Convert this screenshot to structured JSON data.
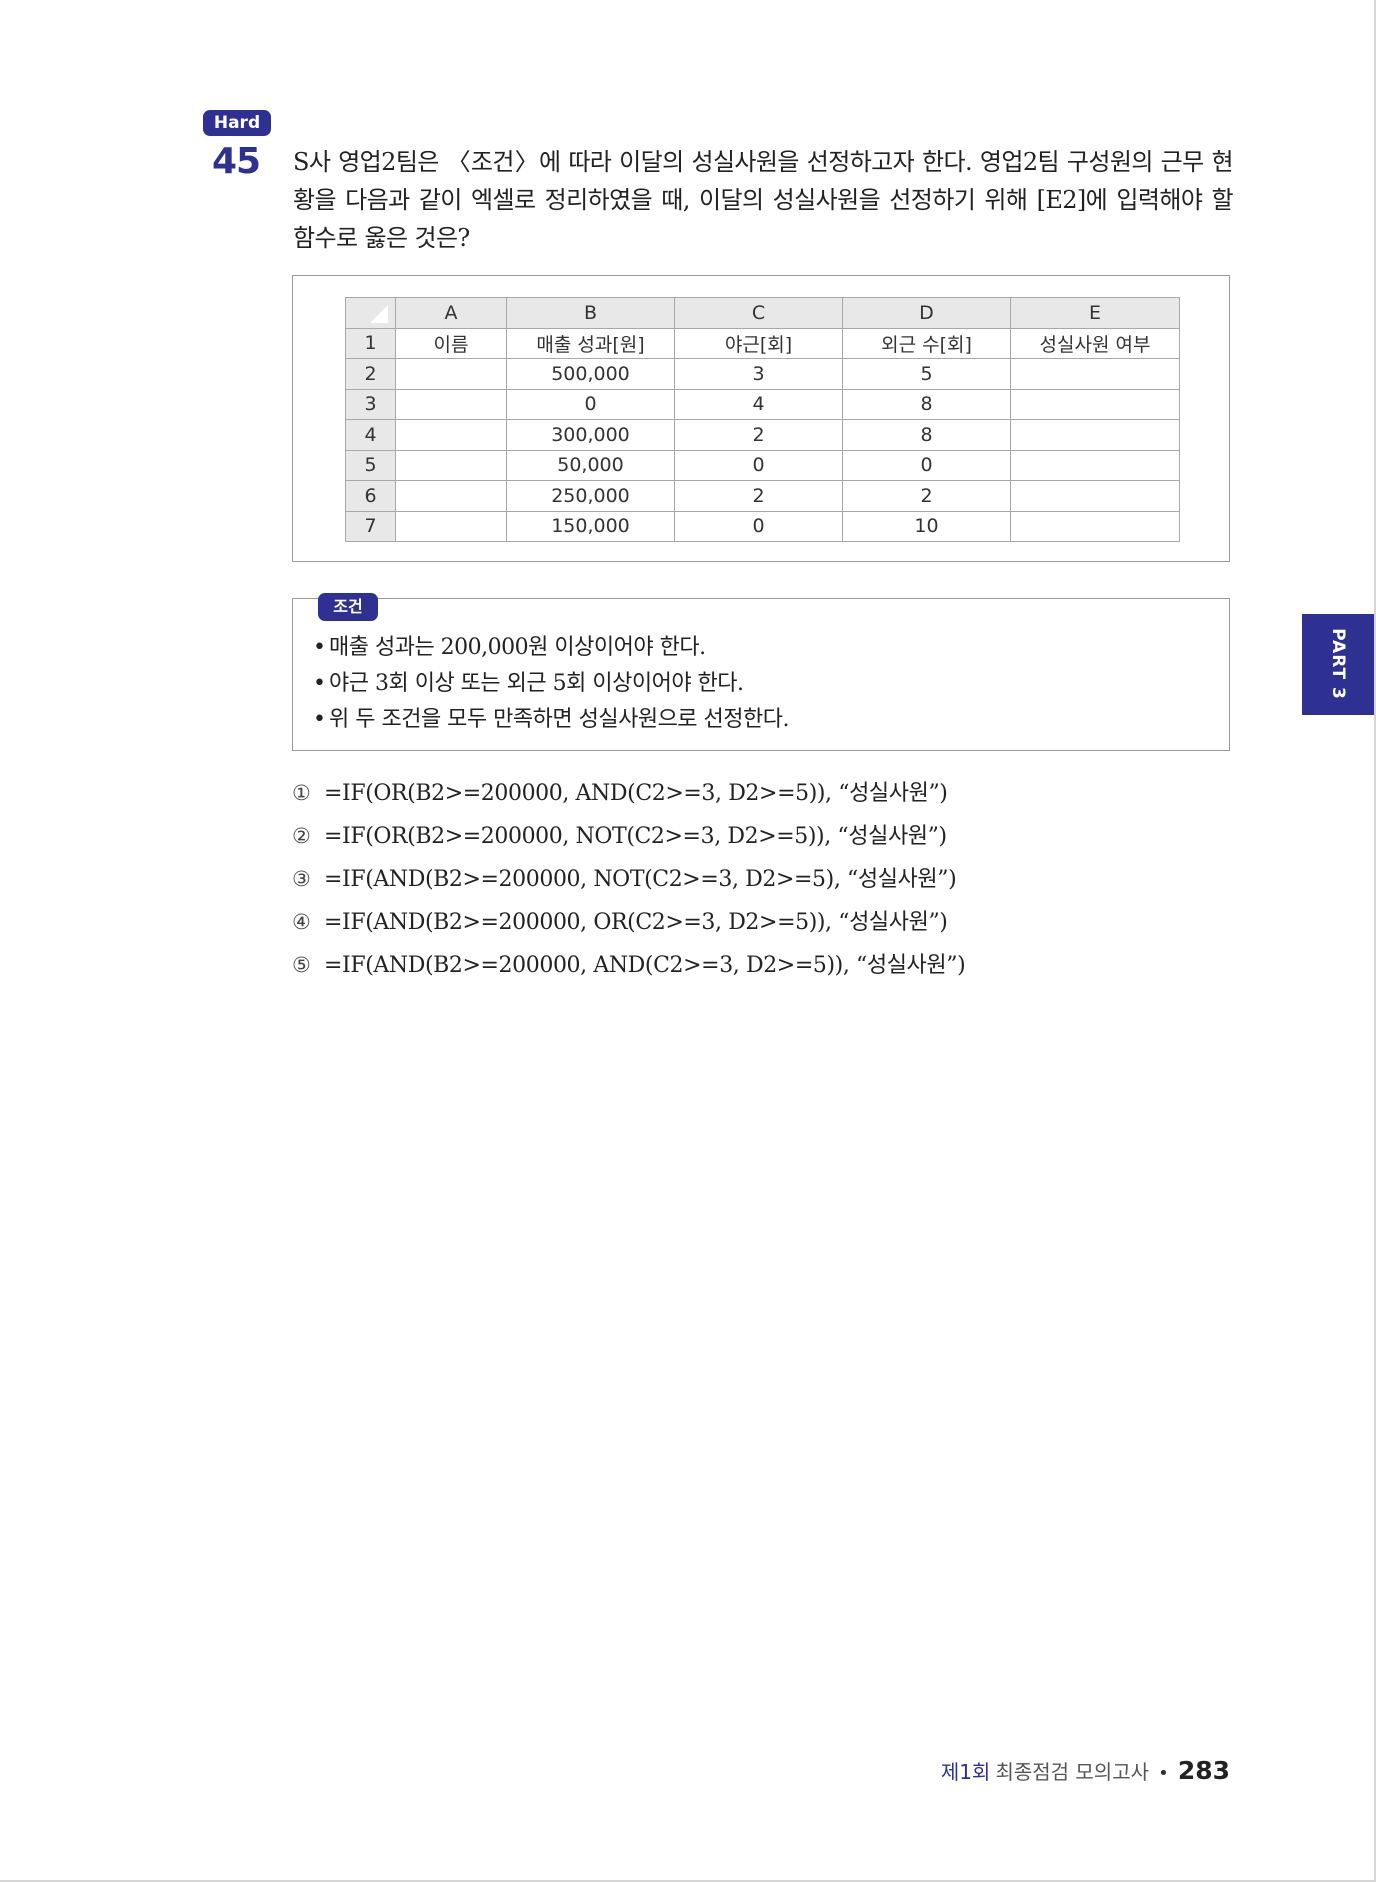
{
  "badge": "Hard",
  "question": {
    "number": "45",
    "text": "S사 영업2팀은 〈조건〉에 따라 이달의 성실사원을 선정하고자 한다. 영업2팀 구성원의 근무 현황을 다음과 같이 엑셀로 정리하였을 때, 이달의 성실사원을 선정하기 위해 [E2]에 입력해야 할 함수로 옳은 것은?"
  },
  "sheet": {
    "columns": [
      "A",
      "B",
      "C",
      "D",
      "E"
    ],
    "rows": [
      {
        "num": "1",
        "cells": [
          "이름",
          "매출 성과[원]",
          "야근[회]",
          "외근 수[회]",
          "성실사원 여부"
        ]
      },
      {
        "num": "2",
        "cells": [
          "",
          "500,000",
          "3",
          "5",
          ""
        ]
      },
      {
        "num": "3",
        "cells": [
          "",
          "0",
          "4",
          "8",
          ""
        ]
      },
      {
        "num": "4",
        "cells": [
          "",
          "300,000",
          "2",
          "8",
          ""
        ]
      },
      {
        "num": "5",
        "cells": [
          "",
          "50,000",
          "0",
          "0",
          ""
        ]
      },
      {
        "num": "6",
        "cells": [
          "",
          "250,000",
          "2",
          "2",
          ""
        ]
      },
      {
        "num": "7",
        "cells": [
          "",
          "150,000",
          "0",
          "10",
          ""
        ]
      }
    ]
  },
  "conditions": {
    "title": "조건",
    "items": [
      "매출 성과는 200,000원 이상이어야 한다.",
      "야근 3회 이상 또는 외근 5회 이상이어야 한다.",
      "위 두 조건을 모두 만족하면 성실사원으로 선정한다."
    ]
  },
  "choices": [
    {
      "mark": "①",
      "text": "=IF(OR(B2>=200000, AND(C2>=3, D2>=5)), “성실사원”)"
    },
    {
      "mark": "②",
      "text": "=IF(OR(B2>=200000, NOT(C2>=3, D2>=5)), “성실사원”)"
    },
    {
      "mark": "③",
      "text": "=IF(AND(B2>=200000, NOT(C2>=3, D2>=5), “성실사원”)"
    },
    {
      "mark": "④",
      "text": "=IF(AND(B2>=200000, OR(C2>=3, D2>=5)), “성실사원”)"
    },
    {
      "mark": "⑤",
      "text": "=IF(AND(B2>=200000, AND(C2>=3, D2>=5)), “성실사원”)"
    }
  ],
  "side_tab": "PART 3",
  "footer": {
    "round": "제1회",
    "title": "최종점검 모의고사",
    "page": "283"
  }
}
